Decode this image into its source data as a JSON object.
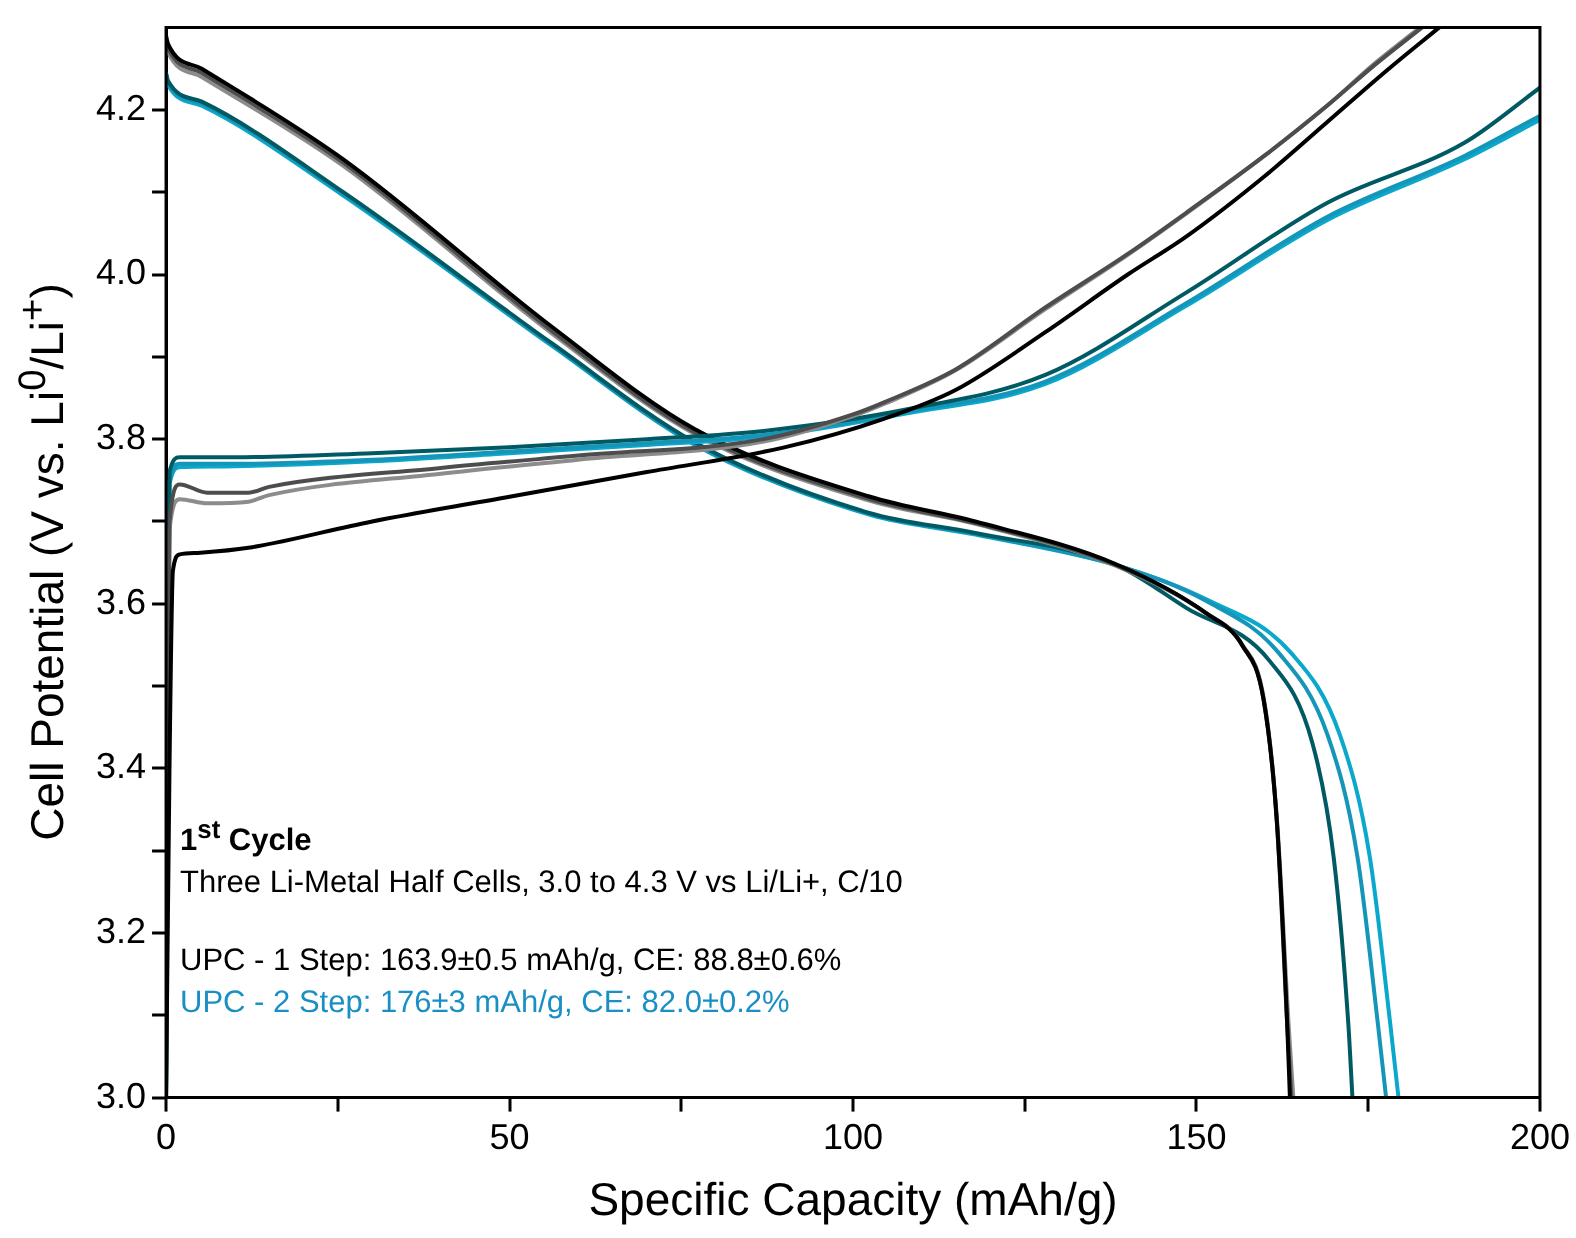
{
  "chart_data": {
    "type": "line",
    "title": "1$^{st}$ Cycle",
    "subtitle": "Three Li-Metal Half Cells, 3.0 to 4.3 V vs Li/Li+, C/10",
    "xlabel": "Specific Capacity (mAh/g)",
    "ylabel": "Cell Potential (V vs. Li$^{0}$/Li$^{+}$)",
    "annotations": [
      "UPC - 1 Step: 163.9±0.5 mAh/g, CE: 88.8±0.6%",
      "UPC - 2 Step: 176±3 mAh/g, CE: 82.0±0.2%"
    ],
    "xlim": [
      0,
      200
    ],
    "xticks": [
      0,
      {
        "value": 25,
        "label": null
      },
      50,
      {
        "value": 75,
        "label": null
      },
      100,
      {
        "value": 125,
        "label": null
      },
      150,
      {
        "value": 175,
        "label": null
      },
      200
    ],
    "ylim": [
      3.0,
      4.3
    ],
    "yticks": [
      {
        "value": 3.0,
        "label": "3.0"
      },
      {
        "value": 3.1,
        "label": null
      },
      {
        "value": 3.2,
        "label": "3.2"
      },
      {
        "value": 3.3,
        "label": null
      },
      {
        "value": 3.4,
        "label": "3.4"
      },
      {
        "value": 3.5,
        "label": null
      },
      {
        "value": 3.6,
        "label": "3.6"
      },
      {
        "value": 3.7,
        "label": null
      },
      {
        "value": 3.8,
        "label": "3.8"
      },
      {
        "value": 3.9,
        "label": null
      },
      {
        "value": 4.0,
        "label": "4.0"
      },
      {
        "value": 4.1,
        "label": null
      },
      {
        "value": 4.2,
        "label": "4.2"
      }
    ],
    "legend": false,
    "line_style": "solid",
    "marker": "none",
    "series": [
      {
        "color": "#000000",
        "x": [
          0,
          0.5,
          1,
          2,
          5,
          12,
          30,
          50,
          70,
          90,
          104.6,
          115,
          128,
          140,
          148.5,
          160,
          169,
          178,
          185.3
        ],
        "values": [
          3.0,
          3.4,
          3.64,
          3.66,
          3.662,
          3.668,
          3.7,
          3.73,
          3.76,
          3.79,
          3.825,
          3.86,
          3.93,
          4.0,
          4.046,
          4.12,
          4.185,
          4.25,
          4.3
        ]
      },
      {
        "color": "#4d4d4d",
        "x": [
          0,
          0.5,
          2,
          6,
          12,
          15,
          40,
          60,
          87,
          100,
          104.6,
          115,
          128,
          140,
          148.5,
          160,
          169,
          176,
          182.8
        ],
        "values": [
          3.0,
          3.7,
          3.745,
          3.735,
          3.735,
          3.742,
          3.765,
          3.78,
          3.8,
          3.83,
          3.845,
          3.885,
          3.96,
          4.025,
          4.075,
          4.145,
          4.205,
          4.255,
          4.3
        ]
      },
      {
        "color": "#8c8c8c",
        "x": [
          0,
          0.5,
          2,
          6,
          12,
          15,
          40,
          60,
          87,
          100,
          104.6,
          115,
          128,
          140,
          148.5,
          160,
          169,
          176,
          182.5
        ],
        "values": [
          3.0,
          3.69,
          3.727,
          3.722,
          3.724,
          3.732,
          3.758,
          3.775,
          3.797,
          3.828,
          3.843,
          3.884,
          3.958,
          4.024,
          4.074,
          4.145,
          4.205,
          4.257,
          4.3
        ]
      },
      {
        "color": "#005a64",
        "x": [
          0,
          0.5,
          2,
          10,
          30,
          50,
          70,
          87,
          107.7,
          128,
          148.5,
          169,
          189,
          200
        ],
        "values": [
          3.0,
          3.76,
          3.778,
          3.778,
          3.783,
          3.79,
          3.8,
          3.81,
          3.836,
          3.878,
          3.978,
          4.087,
          4.16,
          4.227
        ]
      },
      {
        "color": "#1596b8",
        "x": [
          0,
          0.5,
          2,
          10,
          30,
          50,
          70,
          87,
          107.7,
          128,
          148.5,
          169,
          189,
          200
        ],
        "values": [
          3.0,
          3.75,
          3.77,
          3.77,
          3.775,
          3.785,
          3.795,
          3.805,
          3.833,
          3.87,
          3.965,
          4.07,
          4.144,
          4.193
        ]
      },
      {
        "color": "#0aa8cc",
        "x": [
          0,
          0.5,
          2,
          10,
          30,
          50,
          70,
          87,
          107.7,
          128,
          148.5,
          169,
          189,
          200
        ],
        "values": [
          3.0,
          3.745,
          3.766,
          3.767,
          3.773,
          3.783,
          3.793,
          3.803,
          3.831,
          3.867,
          3.962,
          4.066,
          4.14,
          4.188
        ]
      },
      {
        "color": "#000000",
        "x": [
          0,
          0.3,
          5.2,
          25.8,
          56.4,
          77,
          102.5,
          117.8,
          138.3,
          151.5,
          156.7,
          159.8,
          161.7,
          163.2,
          163.6
        ],
        "values": [
          4.29,
          4.28,
          4.25,
          4.14,
          3.935,
          3.812,
          3.73,
          3.7,
          3.648,
          3.588,
          3.549,
          3.482,
          3.335,
          3.09,
          3.0
        ]
      },
      {
        "color": "#4d4d4d",
        "x": [
          0,
          0.3,
          5.2,
          25.8,
          56.4,
          77,
          102.5,
          117.8,
          138.3,
          151.5,
          156.7,
          159.8,
          161.7,
          163.2,
          163.8
        ],
        "values": [
          4.285,
          4.275,
          4.245,
          4.136,
          3.93,
          3.808,
          3.727,
          3.698,
          3.647,
          3.588,
          3.549,
          3.482,
          3.335,
          3.09,
          3.0
        ]
      },
      {
        "color": "#8c8c8c",
        "x": [
          0,
          0.3,
          5.2,
          25.8,
          56.4,
          77,
          102.5,
          117.8,
          138.3,
          151.5,
          156.7,
          159.8,
          161.7,
          163.4,
          164.1
        ],
        "values": [
          4.28,
          4.27,
          4.24,
          4.132,
          3.927,
          3.806,
          3.725,
          3.697,
          3.646,
          3.588,
          3.55,
          3.485,
          3.34,
          3.09,
          3.0
        ]
      },
      {
        "color": "#005a64",
        "x": [
          0,
          0.3,
          5.2,
          25.8,
          56.4,
          77,
          102.5,
          117.8,
          138.3,
          148.5,
          160.7,
          166.9,
          170,
          172.1,
          172.7
        ],
        "values": [
          4.245,
          4.235,
          4.21,
          4.1,
          3.915,
          3.796,
          3.71,
          3.686,
          3.647,
          3.595,
          3.53,
          3.43,
          3.29,
          3.09,
          3.0
        ]
      },
      {
        "color": "#1596b8",
        "x": [
          0,
          0.3,
          5.2,
          25.8,
          56.4,
          77,
          102.5,
          117.8,
          138.3,
          151.5,
          162,
          169.1,
          173.4,
          176.4,
          177.6
        ],
        "values": [
          4.243,
          4.233,
          4.208,
          4.098,
          3.913,
          3.794,
          3.709,
          3.685,
          3.647,
          3.603,
          3.54,
          3.44,
          3.294,
          3.09,
          3.0
        ]
      },
      {
        "color": "#0aa8cc",
        "x": [
          0,
          0.3,
          5.2,
          25.8,
          56.4,
          77,
          102.5,
          117.8,
          138.3,
          151.5,
          163.8,
          170.9,
          175.2,
          178.2,
          179.4
        ],
        "values": [
          4.24,
          4.23,
          4.205,
          4.096,
          3.912,
          3.793,
          3.708,
          3.684,
          3.647,
          3.605,
          3.54,
          3.44,
          3.294,
          3.09,
          3.0
        ]
      }
    ]
  }
}
